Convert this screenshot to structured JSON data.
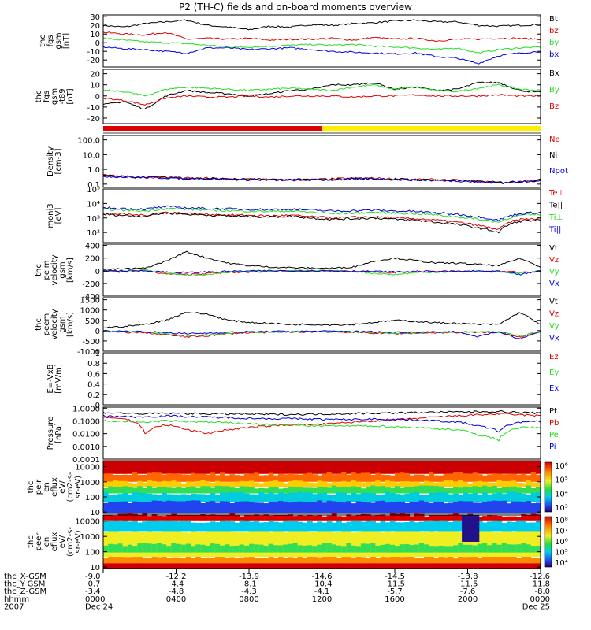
{
  "title": "P2 (TH-C) fields and on-board moments overview",
  "colors": {
    "black": "#000000",
    "red": "#dd0000",
    "green": "#22dd22",
    "blue": "#0000dd",
    "yellow": "#ffee00"
  },
  "chart_data": [
    {
      "type": "line",
      "panel": "fgs_gsm",
      "ylabel": [
        "thc",
        "fgs",
        "gsm",
        "[nT]"
      ],
      "yticks": [
        -20,
        -10,
        0,
        10,
        20,
        30
      ],
      "ylim": [
        -28,
        32
      ],
      "series": [
        {
          "name": "Bt",
          "color": "black",
          "values": [
            20,
            18,
            22,
            24,
            26,
            20,
            18,
            15,
            19,
            18,
            21,
            20,
            22,
            23,
            25,
            26,
            24,
            24,
            20,
            19,
            20,
            21
          ]
        },
        {
          "name": "bz",
          "color": "red",
          "values": [
            12,
            10,
            9,
            12,
            4,
            5,
            4,
            5,
            3,
            4,
            4,
            5,
            3,
            6,
            4,
            5,
            2,
            4,
            4,
            5,
            5,
            4
          ]
        },
        {
          "name": "by",
          "color": "green",
          "values": [
            5,
            3,
            1,
            0,
            -1,
            -3,
            -5,
            -5,
            -4,
            -3,
            -2,
            -3,
            -2,
            -4,
            -5,
            -6,
            -8,
            -6,
            -12,
            -8,
            -6,
            -5
          ]
        },
        {
          "name": "bx",
          "color": "blue",
          "values": [
            -5,
            -7,
            -8,
            -10,
            -12,
            -6,
            -6,
            -8,
            -7,
            -6,
            -8,
            -10,
            -11,
            -12,
            -13,
            -12,
            -16,
            -18,
            -24,
            -15,
            -12,
            -10
          ]
        }
      ]
    },
    {
      "type": "line",
      "panel": "fgs_gse_minus_t89",
      "ylabel": [
        "thc",
        "fgs",
        "gsm",
        "-t89",
        "[nT]"
      ],
      "yticks": [
        -20,
        -10,
        0,
        10,
        20
      ],
      "ylim": [
        -25,
        24
      ],
      "series": [
        {
          "name": "Bx",
          "color": "black",
          "values": [
            -8,
            -5,
            -12,
            0,
            5,
            3,
            2,
            0,
            2,
            5,
            6,
            10,
            10,
            12,
            6,
            8,
            5,
            6,
            12,
            12,
            5,
            3
          ]
        },
        {
          "name": "By",
          "color": "green",
          "values": [
            5,
            4,
            0,
            6,
            8,
            7,
            6,
            5,
            6,
            7,
            6,
            5,
            8,
            10,
            6,
            8,
            5,
            4,
            7,
            10,
            6,
            5
          ]
        },
        {
          "name": "Bz",
          "color": "red",
          "values": [
            -2,
            -4,
            -8,
            -2,
            0,
            -1,
            -1,
            0,
            -1,
            0,
            0,
            0,
            -1,
            0,
            0,
            1,
            0,
            0,
            0,
            1,
            0,
            0
          ]
        }
      ]
    },
    {
      "type": "line",
      "panel": "density",
      "ylabel": [
        "Density",
        "[cm-3]"
      ],
      "scale": "log",
      "yticks": [
        0.1,
        1.0,
        10.0,
        100.0
      ],
      "ytick_labels": [
        "0.1",
        "1.0",
        "10.0",
        "100.0"
      ],
      "ylim": [
        0.06,
        200
      ],
      "series": [
        {
          "name": "Ne",
          "color": "red",
          "values": [
            0.4,
            0.35,
            0.3,
            0.3,
            0.25,
            0.25,
            0.22,
            0.22,
            0.2,
            0.2,
            0.2,
            0.22,
            0.25,
            0.25,
            0.22,
            0.2,
            0.2,
            0.18,
            0.15,
            0.12,
            0.15,
            0.2
          ]
        },
        {
          "name": "Ni",
          "color": "black",
          "values": [
            0.38,
            0.33,
            0.3,
            0.28,
            0.25,
            0.24,
            0.22,
            0.21,
            0.2,
            0.2,
            0.2,
            0.21,
            0.24,
            0.24,
            0.22,
            0.2,
            0.19,
            0.18,
            0.15,
            0.13,
            0.15,
            0.19
          ]
        },
        {
          "name": "Npot",
          "color": "blue",
          "values": [
            0.35,
            0.3,
            0.28,
            0.27,
            0.24,
            0.23,
            0.21,
            0.2,
            0.19,
            0.19,
            0.19,
            0.2,
            0.22,
            0.23,
            0.21,
            0.19,
            0.18,
            0.17,
            0.14,
            0.12,
            0.14,
            0.18
          ]
        }
      ]
    },
    {
      "type": "line",
      "panel": "temperature",
      "ylabel": [
        "moni3",
        "[eV]"
      ],
      "scale": "log",
      "yticks": [
        100,
        1000,
        10000,
        100000
      ],
      "ytick_labels": [
        "10²",
        "10³",
        "10⁴",
        "10⁵"
      ],
      "ylim": [
        20,
        100000
      ],
      "series": [
        {
          "name": "Te⊥",
          "color": "red",
          "values": [
            2000,
            1800,
            1500,
            2500,
            2000,
            1800,
            1600,
            1500,
            1400,
            1500,
            1200,
            1000,
            1100,
            1200,
            1000,
            900,
            700,
            500,
            300,
            150,
            800,
            900
          ]
        },
        {
          "name": "Te||",
          "color": "black",
          "values": [
            1800,
            1500,
            1300,
            2200,
            1800,
            1600,
            1400,
            1300,
            1200,
            1300,
            1000,
            800,
            900,
            1000,
            800,
            700,
            500,
            350,
            200,
            100,
            600,
            700
          ]
        },
        {
          "name": "Ti⊥",
          "color": "green",
          "values": [
            4000,
            3500,
            3000,
            4500,
            4000,
            3500,
            3200,
            3000,
            2800,
            3000,
            2500,
            2000,
            2200,
            2500,
            2200,
            2000,
            1600,
            1200,
            800,
            500,
            1500,
            1800
          ]
        },
        {
          "name": "Ti||",
          "color": "blue",
          "values": [
            5000,
            4500,
            4000,
            6000,
            5000,
            4500,
            4200,
            4000,
            3800,
            4000,
            3500,
            3000,
            3200,
            3500,
            3000,
            2800,
            2200,
            1800,
            1200,
            700,
            2000,
            2500
          ]
        }
      ]
    },
    {
      "type": "line",
      "panel": "peim_velocity",
      "ylabel": [
        "thc",
        "peim",
        "velocity",
        "gsm",
        "[km/s]"
      ],
      "yticks": [
        -400,
        -200,
        0,
        200,
        400
      ],
      "ylim": [
        -400,
        420
      ],
      "series": [
        {
          "name": "Vt",
          "color": "black",
          "values": [
            20,
            30,
            40,
            150,
            300,
            200,
            120,
            80,
            60,
            50,
            40,
            40,
            60,
            150,
            200,
            160,
            120,
            120,
            100,
            80,
            200,
            60
          ]
        },
        {
          "name": "Vz",
          "color": "red",
          "values": [
            0,
            -20,
            0,
            -50,
            -60,
            -40,
            -30,
            -20,
            -10,
            -10,
            -5,
            -5,
            -10,
            -20,
            -30,
            -20,
            -10,
            -10,
            -10,
            -10,
            -20,
            -5
          ]
        },
        {
          "name": "Vy",
          "color": "green",
          "values": [
            0,
            0,
            10,
            -30,
            -80,
            -60,
            -20,
            -10,
            0,
            0,
            0,
            0,
            -10,
            -40,
            -60,
            -30,
            -20,
            -20,
            -10,
            -20,
            -40,
            -10
          ]
        },
        {
          "name": "Vx",
          "color": "blue",
          "values": [
            0,
            0,
            0,
            -20,
            -30,
            -20,
            -10,
            -5,
            0,
            0,
            0,
            0,
            -5,
            -10,
            -20,
            -10,
            -10,
            -10,
            -5,
            -10,
            -60,
            -5
          ]
        }
      ]
    },
    {
      "type": "line",
      "panel": "peem_velocity",
      "ylabel": [
        "thc",
        "peem",
        "velocity",
        "gsm",
        "[km/s]"
      ],
      "yticks": [
        -1000,
        -500,
        0,
        500,
        1000,
        1500
      ],
      "ylim": [
        -1000,
        1600
      ],
      "series": [
        {
          "name": "Vt",
          "color": "black",
          "values": [
            150,
            200,
            300,
            500,
            900,
            800,
            500,
            400,
            350,
            300,
            300,
            280,
            300,
            400,
            500,
            450,
            380,
            350,
            300,
            300,
            900,
            300
          ]
        },
        {
          "name": "Vz",
          "color": "red",
          "values": [
            -50,
            -80,
            -100,
            -200,
            -300,
            -250,
            -150,
            -100,
            -80,
            -70,
            -60,
            -60,
            -80,
            -120,
            -150,
            -120,
            -100,
            -90,
            -80,
            -80,
            -300,
            -80
          ]
        },
        {
          "name": "Vy",
          "color": "green",
          "values": [
            -30,
            -50,
            -80,
            -150,
            -250,
            -200,
            -120,
            -80,
            -60,
            -50,
            -50,
            -50,
            -60,
            -90,
            -120,
            -100,
            -80,
            -70,
            -60,
            -60,
            -250,
            -60
          ]
        },
        {
          "name": "Vx",
          "color": "blue",
          "values": [
            -20,
            -30,
            -50,
            -100,
            -150,
            -120,
            -80,
            -60,
            -40,
            -40,
            -30,
            -30,
            -40,
            -60,
            -80,
            -70,
            -60,
            -50,
            -300,
            -40,
            -400,
            -40
          ]
        }
      ]
    },
    {
      "type": "line",
      "panel": "efield",
      "ylabel": [
        "E=-VxB",
        "[mV/m]"
      ],
      "yticks": [
        0.0,
        0.2,
        0.4,
        0.6,
        0.8,
        1.0
      ],
      "ylim": [
        0,
        1
      ],
      "series": [
        {
          "name": "Ez",
          "color": "red",
          "values": []
        },
        {
          "name": "Ey",
          "color": "green",
          "values": []
        },
        {
          "name": "Ex",
          "color": "blue",
          "values": []
        }
      ]
    },
    {
      "type": "line",
      "panel": "pressure",
      "ylabel": [
        "Pressure",
        "[nPa]"
      ],
      "scale": "log",
      "yticks": [
        0.0001,
        0.001,
        0.01,
        0.1,
        1.0
      ],
      "ytick_labels": [
        "0.0001",
        "0.0010",
        "0.0100",
        "0.1000",
        "1.0000"
      ],
      "ylim": [
        0.0001,
        1.2
      ],
      "series": [
        {
          "name": "Pt",
          "color": "black",
          "values": [
            0.45,
            0.4,
            0.35,
            0.4,
            0.38,
            0.36,
            0.35,
            0.34,
            0.32,
            0.32,
            0.33,
            0.35,
            0.38,
            0.4,
            0.42,
            0.45,
            0.48,
            0.5,
            0.52,
            0.55,
            0.45,
            0.4
          ]
        },
        {
          "name": "Pb",
          "color": "red",
          "values": [
            0.2,
            0.15,
            0.01,
            0.05,
            0.02,
            0.01,
            0.02,
            0.03,
            0.04,
            0.05,
            0.05,
            0.06,
            0.08,
            0.1,
            0.12,
            0.15,
            0.2,
            0.25,
            0.3,
            0.35,
            0.3,
            0.25
          ]
        },
        {
          "name": "Pe",
          "color": "green",
          "values": [
            0.1,
            0.09,
            0.08,
            0.1,
            0.09,
            0.08,
            0.07,
            0.06,
            0.05,
            0.05,
            0.04,
            0.04,
            0.04,
            0.04,
            0.035,
            0.03,
            0.025,
            0.02,
            0.008,
            0.003,
            0.03,
            0.03
          ]
        },
        {
          "name": "Pi",
          "color": "blue",
          "values": [
            0.25,
            0.22,
            0.2,
            0.25,
            0.22,
            0.2,
            0.18,
            0.16,
            0.15,
            0.15,
            0.14,
            0.13,
            0.13,
            0.14,
            0.13,
            0.12,
            0.1,
            0.08,
            0.04,
            0.015,
            0.08,
            0.09
          ]
        }
      ]
    },
    {
      "type": "heatmap",
      "panel": "peir_en_eflux",
      "ylabel": [
        "thc",
        "peir",
        "en",
        "eflux",
        "eV/",
        "(cm2-s-",
        "sr-eV)"
      ],
      "scale": "log",
      "yticks": [
        10,
        100,
        1000,
        10000
      ],
      "ytick_labels": [
        "10",
        "100",
        "1000",
        "10000"
      ],
      "ylim": [
        8,
        25000
      ],
      "colorbar_ticks": [
        "10³",
        "10⁴",
        "10⁵",
        "10⁶"
      ]
    },
    {
      "type": "heatmap",
      "panel": "peer_en_eflux",
      "ylabel": [
        "thc",
        "peer",
        "en",
        "eflux",
        "eV/",
        "(cm2-s-",
        "sr-eV)"
      ],
      "scale": "log",
      "yticks": [
        10,
        100,
        1000,
        10000
      ],
      "ytick_labels": [
        "10",
        "100",
        "1000",
        "10000"
      ],
      "ylim": [
        8,
        25000
      ],
      "colorbar_ticks": [
        "10⁴",
        "10⁵",
        "10⁶",
        "10⁷",
        "10⁸"
      ]
    }
  ],
  "mode_bar": {
    "red_end_fraction": 0.5,
    "colors": [
      "red",
      "yellow"
    ]
  },
  "xaxis": {
    "rows": [
      {
        "label": "thc_X-GSM",
        "values": [
          "-9.0",
          "-12.2",
          "-13.9",
          "-14.6",
          "-14.5",
          "-13.8",
          "-12.6"
        ]
      },
      {
        "label": "thc_Y-GSM",
        "values": [
          "-0.7",
          "-4.4",
          "-8.1",
          "-10.4",
          "-11.5",
          "-11.5",
          "-11.8"
        ]
      },
      {
        "label": "thc_Z-GSM",
        "values": [
          "-3.4",
          "-4.8",
          "-4.3",
          "-4.1",
          "-5.7",
          "-7.6",
          "-8.0"
        ]
      },
      {
        "label": "hhmm",
        "values": [
          "0000",
          "0400",
          "0800",
          "1200",
          "1600",
          "2000",
          "0000"
        ]
      },
      {
        "label": "2007",
        "values": [
          "Dec 24",
          "",
          "",
          "",
          "",
          "",
          "Dec 25"
        ]
      }
    ]
  }
}
